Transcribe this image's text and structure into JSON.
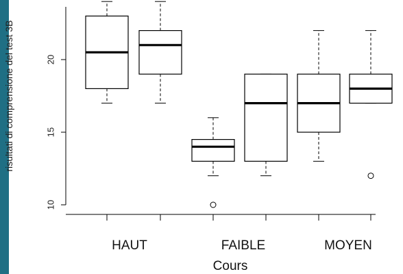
{
  "chart_data": {
    "type": "boxplot",
    "title": "",
    "xlabel": "Cours",
    "ylabel": "risultati di comprensione del test 3B",
    "ylim": [
      9.8,
      24
    ],
    "yticks": [
      10,
      15,
      20
    ],
    "category_labels": [
      "HAUT",
      "FAIBLE",
      "MOYEN"
    ],
    "boxes": [
      {
        "group": "HAUT",
        "min": 17,
        "q1": 18,
        "median": 20.5,
        "q3": 23,
        "max": 24,
        "outliers": []
      },
      {
        "group": "HAUT",
        "min": 17,
        "q1": 19,
        "median": 21,
        "q3": 22,
        "max": 24,
        "outliers": []
      },
      {
        "group": "FAIBLE",
        "min": 12,
        "q1": 13,
        "median": 14,
        "q3": 14.5,
        "max": 16,
        "outliers": [
          10
        ]
      },
      {
        "group": "FAIBLE",
        "min": 12,
        "q1": 13,
        "median": 17,
        "q3": 19,
        "max": 19,
        "outliers": []
      },
      {
        "group": "MOYEN",
        "min": 13,
        "q1": 15,
        "median": 17,
        "q3": 19,
        "max": 22,
        "outliers": []
      },
      {
        "group": "MOYEN",
        "min": 17,
        "q1": 17,
        "median": 18,
        "q3": 19,
        "max": 22,
        "outliers": [
          12
        ]
      }
    ],
    "colors": {
      "box_fill": "#ffffff",
      "line": "#000000",
      "side_bar": "#1f6f84"
    }
  }
}
